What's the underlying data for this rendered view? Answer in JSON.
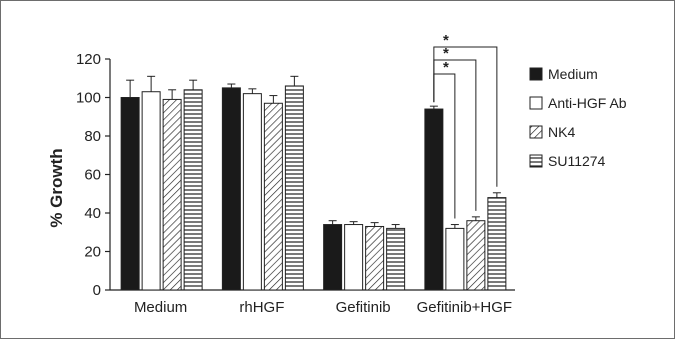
{
  "chart_data": {
    "type": "bar",
    "ylabel": "% Growth",
    "ylim": [
      0,
      120
    ],
    "yticks": [
      0,
      20,
      40,
      60,
      80,
      100,
      120
    ],
    "categories": [
      "Medium",
      "rhHGF",
      "Gefitinib",
      "Gefitinib+HGF"
    ],
    "series": [
      {
        "name": "Medium",
        "color": "#1a1a1a",
        "pattern": "solid",
        "values": [
          100,
          105,
          34,
          94
        ],
        "errors": [
          9,
          2,
          2,
          1.5
        ]
      },
      {
        "name": "Anti-HGF Ab",
        "color": "#ffffff",
        "pattern": "none",
        "values": [
          103,
          102,
          34,
          32
        ],
        "errors": [
          8,
          2.5,
          1.5,
          2
        ]
      },
      {
        "name": "NK4",
        "color": "#ffffff",
        "pattern": "diagonal-hatch",
        "values": [
          99,
          97,
          33,
          36
        ],
        "errors": [
          5,
          4,
          2,
          2
        ]
      },
      {
        "name": "SU11274",
        "color": "#ffffff",
        "pattern": "horizontal-lines",
        "values": [
          104,
          106,
          32,
          48
        ],
        "errors": [
          5,
          5,
          2,
          2.5
        ]
      }
    ],
    "legend_position": "right",
    "grid": false,
    "annotations": [
      {
        "text": "*",
        "group": "Gefitinib+HGF",
        "from_series": "Medium",
        "to_series": "Anti-HGF Ab"
      },
      {
        "text": "*",
        "group": "Gefitinib+HGF",
        "from_series": "Medium",
        "to_series": "NK4"
      },
      {
        "text": "*",
        "group": "Gefitinib+HGF",
        "from_series": "Medium",
        "to_series": "SU11274"
      }
    ]
  }
}
